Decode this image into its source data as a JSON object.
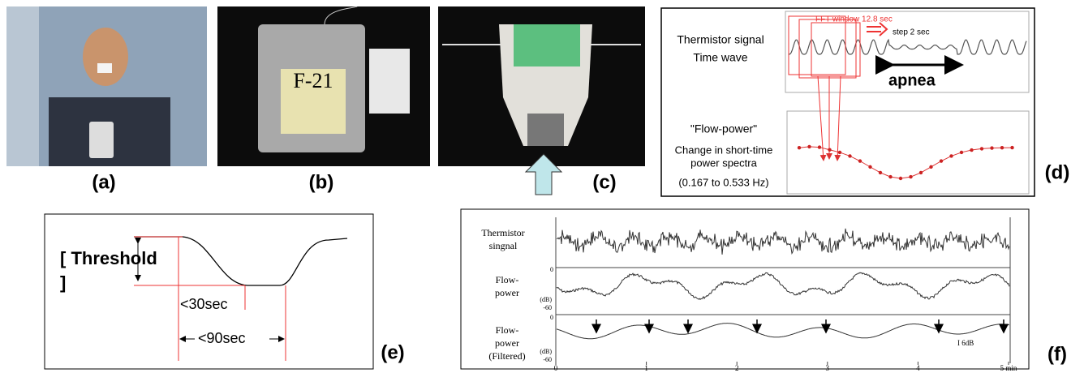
{
  "panels": {
    "a": {
      "label": "(a)"
    },
    "b": {
      "label": "(b)",
      "device_tag": "F-21"
    },
    "c": {
      "label": "(c)"
    },
    "d": {
      "label": "(d)",
      "fft_window": "FFT window 12.8 sec",
      "step": "step 2 sec",
      "signal_title": [
        "Thermistor signal",
        "Time wave"
      ],
      "apnea": "apnea",
      "flow_power": "\"Flow-power\"",
      "flow_desc": [
        "Change in short-time",
        "power spectra",
        "(0.167 to 0.533 Hz)"
      ]
    },
    "e": {
      "label": "(e)",
      "threshold": [
        "[ Threshold",
        "]"
      ],
      "lt30": "<30sec",
      "lt90": "<90sec"
    },
    "f": {
      "label": "(f)",
      "row1": [
        "Thermistor",
        "singnal"
      ],
      "row2": [
        "Flow-",
        "power"
      ],
      "row2_unit": "(dB)",
      "row2_top": "0",
      "row2_bottom": "-60",
      "row3": [
        "Flow-",
        "power",
        "(Filtered)"
      ],
      "row3_unit": "(dB)",
      "row3_top": "0",
      "row3_bottom": "-60",
      "scale": "I 6dB",
      "x_ticks": [
        "0",
        "1",
        "2",
        "3",
        "4",
        "5 min"
      ]
    }
  }
}
